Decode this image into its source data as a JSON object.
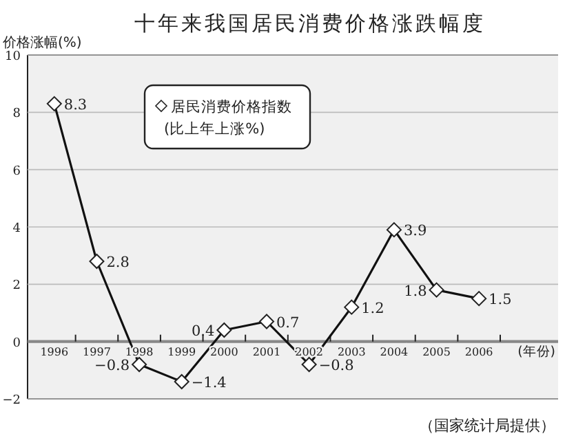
{
  "chart_data": {
    "type": "line",
    "title": "十年来我国居民消费价格涨跌幅度",
    "ylabel": "价格涨幅(%)",
    "xlabel": "(年份)",
    "categories": [
      "1996",
      "1997",
      "1998",
      "1999",
      "2000",
      "2001",
      "2002",
      "2003",
      "2004",
      "2005",
      "2006"
    ],
    "series": [
      {
        "name": "居民消费价格指数\n(比上年上涨%)",
        "color": "#111111",
        "values": [
          8.3,
          2.8,
          -0.8,
          -1.4,
          0.4,
          0.7,
          -0.8,
          1.2,
          3.9,
          1.8,
          1.5
        ]
      }
    ],
    "ylim": [
      -2,
      10
    ],
    "yticks": [
      -2,
      0,
      2,
      4,
      6,
      8,
      10
    ],
    "grid": "y",
    "legend": "top left",
    "marker": "diamond",
    "line_style": "solid",
    "data_labels": true,
    "annotations": [
      "（国家统计局提供）"
    ]
  }
}
